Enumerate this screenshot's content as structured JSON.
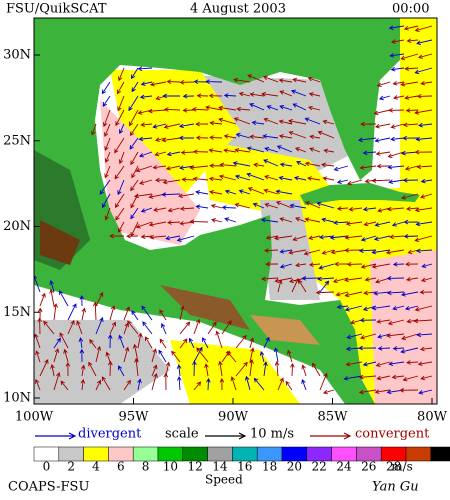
{
  "header": {
    "source": "FSU/QuikSCAT",
    "date": "4 August 2003",
    "time": "00:00"
  },
  "map": {
    "lat_labels": [
      "30N",
      "25N",
      "20N",
      "15N",
      "10N"
    ],
    "lon_labels": [
      "100W",
      "95W",
      "90W",
      "85W",
      "80W"
    ]
  },
  "legend": {
    "divergent": "divergent",
    "scale": "scale",
    "scale_value": "10 m/s",
    "convergent": "convergent"
  },
  "colorbar": {
    "labels": [
      0,
      2,
      4,
      6,
      8,
      10,
      12,
      14,
      16,
      18,
      20,
      22,
      24,
      26,
      28
    ],
    "unit": "m/s",
    "title": "Speed",
    "colors": [
      "#ffffff",
      "#c8c8c8",
      "#ffff00",
      "#ffc8c8",
      "#96ff96",
      "#00c800",
      "#008c00",
      "#a0a0a0",
      "#00b4b4",
      "#3c96ff",
      "#0000ff",
      "#8c28ff",
      "#ff50ff",
      "#c850c8",
      "#ff0000",
      "#c83c00",
      "#000000"
    ]
  },
  "footer": {
    "institution": "COAPS-FSU",
    "author": "Yan Gu"
  }
}
